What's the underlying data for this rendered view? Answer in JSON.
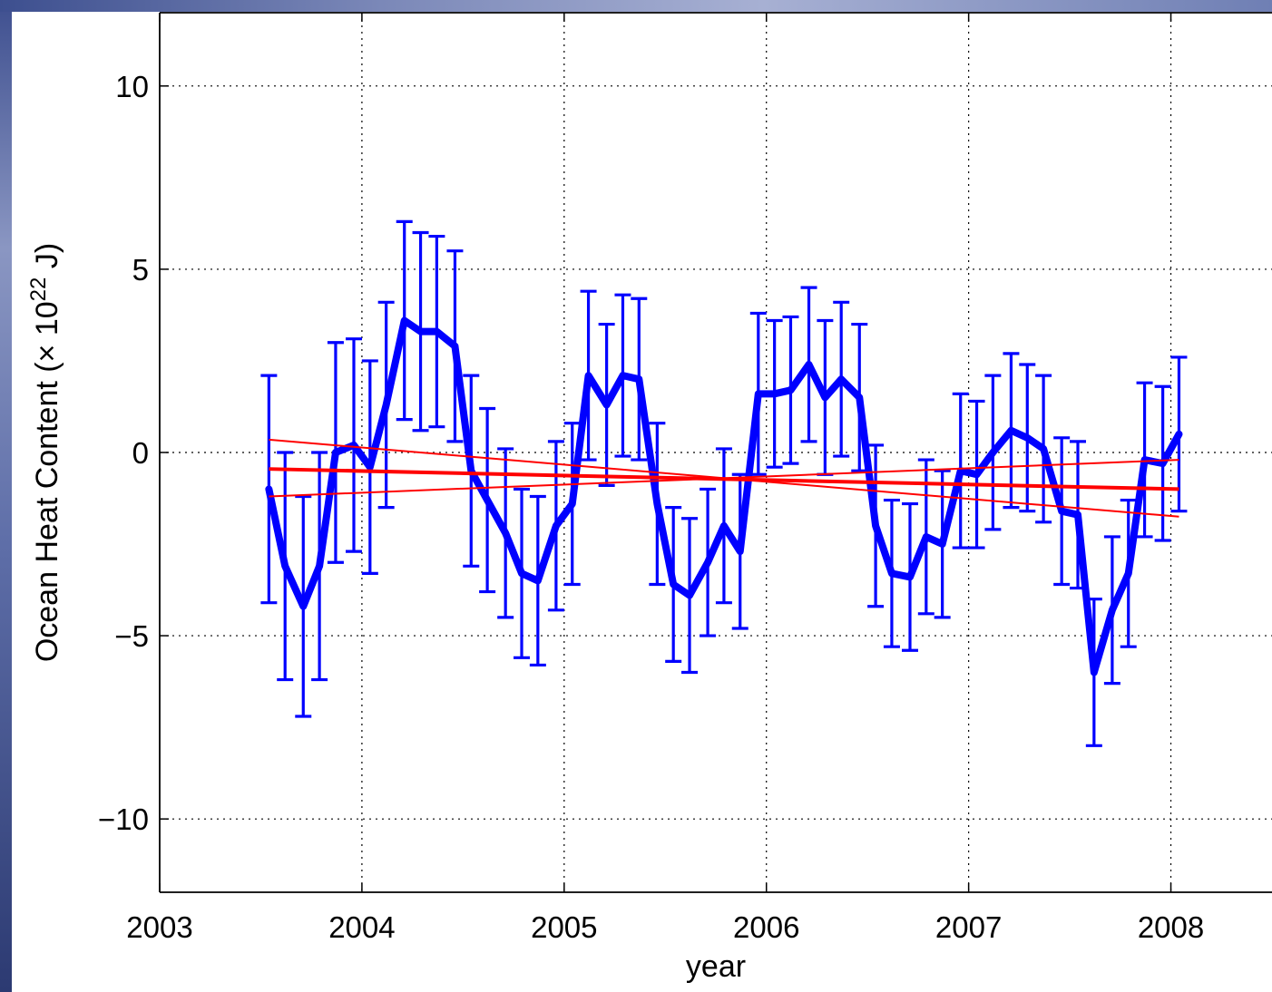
{
  "chart_data": {
    "type": "line",
    "title": "",
    "xlabel": "year",
    "ylabel": {
      "prefix": "Ocean Heat Content (",
      "times": "×",
      "base": " 10",
      "exponent": "22",
      "suffix": " J)"
    },
    "xlim": [
      2003,
      2008.5
    ],
    "ylim": [
      -12,
      12
    ],
    "grid": true,
    "x_ticks": [
      {
        "value": 2003,
        "label": "2003"
      },
      {
        "value": 2004,
        "label": "2004"
      },
      {
        "value": 2005,
        "label": "2005"
      },
      {
        "value": 2006,
        "label": "2006"
      },
      {
        "value": 2007,
        "label": "2007"
      },
      {
        "value": 2008,
        "label": "2008"
      }
    ],
    "y_ticks": [
      {
        "value": 10,
        "label": "10"
      },
      {
        "value": 5,
        "label": "5"
      },
      {
        "value": 0,
        "label": "0"
      },
      {
        "value": -5,
        "label": "−5"
      },
      {
        "value": -10,
        "label": "−10"
      }
    ],
    "series": [
      {
        "color": "#0000ff",
        "x": [
          2003.54,
          2003.62,
          2003.71,
          2003.79,
          2003.87,
          2003.96,
          2004.04,
          2004.12,
          2004.21,
          2004.29,
          2004.37,
          2004.46,
          2004.54,
          2004.62,
          2004.71,
          2004.79,
          2004.87,
          2004.96,
          2005.04,
          2005.12,
          2005.21,
          2005.29,
          2005.37,
          2005.46,
          2005.54,
          2005.62,
          2005.71,
          2005.79,
          2005.87,
          2005.96,
          2006.04,
          2006.12,
          2006.21,
          2006.29,
          2006.37,
          2006.46,
          2006.54,
          2006.62,
          2006.71,
          2006.79,
          2006.87,
          2006.96,
          2007.04,
          2007.12,
          2007.21,
          2007.29,
          2007.37,
          2007.46,
          2007.54,
          2007.62,
          2007.71,
          2007.79,
          2007.87,
          2007.96,
          2008.04
        ],
        "y": [
          -1.0,
          -3.1,
          -4.2,
          -3.1,
          0.0,
          0.2,
          -0.4,
          1.3,
          3.6,
          3.3,
          3.3,
          2.9,
          -0.5,
          -1.3,
          -2.2,
          -3.3,
          -3.5,
          -2.0,
          -1.4,
          2.1,
          1.3,
          2.1,
          2.0,
          -1.4,
          -3.6,
          -3.9,
          -3.0,
          -2.0,
          -2.7,
          1.6,
          1.6,
          1.7,
          2.4,
          1.5,
          2.0,
          1.5,
          -2.0,
          -3.3,
          -3.4,
          -2.3,
          -2.5,
          -0.5,
          -0.6,
          0.0,
          0.6,
          0.4,
          0.1,
          -1.6,
          -1.7,
          -6.0,
          -4.3,
          -3.3,
          -0.2,
          -0.3,
          0.5
        ],
        "error": [
          3.1,
          3.1,
          3.0,
          3.1,
          3.0,
          2.9,
          2.9,
          2.8,
          2.7,
          2.7,
          2.6,
          2.6,
          2.6,
          2.5,
          2.3,
          2.3,
          2.3,
          2.3,
          2.2,
          2.3,
          2.2,
          2.2,
          2.2,
          2.2,
          2.1,
          2.1,
          2.0,
          2.1,
          2.1,
          2.2,
          2.0,
          2.0,
          2.1,
          2.1,
          2.1,
          2.0,
          2.2,
          2.0,
          2.0,
          2.1,
          2.0,
          2.1,
          2.0,
          2.1,
          2.1,
          2.0,
          2.0,
          2.0,
          2.0,
          2.0,
          2.0,
          2.0,
          2.1,
          2.1,
          2.1
        ]
      },
      {
        "color": "#ff0000",
        "x": [
          2003.54,
          2008.04
        ],
        "y": [
          -0.45,
          -1.0
        ]
      },
      {
        "color": "#ff0000",
        "x": [
          2003.54,
          2008.04
        ],
        "y": [
          0.35,
          -1.75
        ]
      },
      {
        "color": "#ff0000",
        "x": [
          2003.54,
          2008.04
        ],
        "y": [
          -1.2,
          -0.2
        ]
      }
    ]
  }
}
